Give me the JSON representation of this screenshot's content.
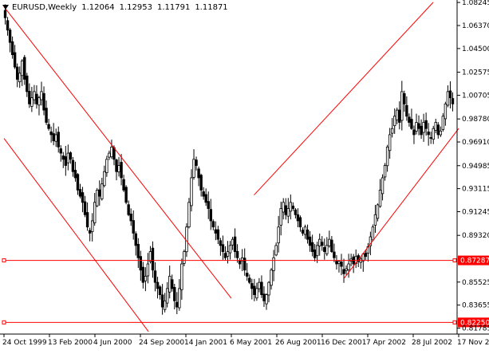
{
  "header": {
    "symbol_timeframe": "EURUSD,Weekly",
    "open": "1.12064",
    "high": "1.12953",
    "low": "1.11791",
    "close": "1.11871"
  },
  "colors": {
    "background": "#ffffff",
    "candle": "#000000",
    "trendline": "#ff0000",
    "hline_label_bg": "#ff0000",
    "hline_label_text": "#ffffff"
  },
  "chart_data": {
    "type": "candlestick",
    "title": "EURUSD,Weekly",
    "y_axis_labels": [
      "1.08245",
      "1.06370",
      "1.04500",
      "1.02575",
      "1.00705",
      "0.98780",
      "0.96910",
      "0.94985",
      "0.93115",
      "0.91245",
      "0.89320",
      "0.87287",
      "0.85525",
      "0.83655",
      "0.82250",
      "0.81785"
    ],
    "x_axis_labels": [
      "24 Oct 1999",
      "13 Feb 2000",
      "4 Jun 2000",
      "24 Sep 2000",
      "14 Jan 2001",
      "6 May 2001",
      "26 Aug 2001",
      "16 Dec 2001",
      "7 Apr 2002",
      "28 Jul 2002",
      "17 Nov 2002"
    ],
    "ylim": [
      0.813,
      1.0825
    ],
    "horizontal_lines": [
      {
        "label": "0.87287",
        "value": 0.87287
      },
      {
        "label": "0.82250",
        "value": 0.8225
      }
    ],
    "trendlines": [
      {
        "from": {
          "x": "24 Oct 1999",
          "y": 1.079
        },
        "to": {
          "x": "6 May 2001",
          "y": 0.842
        }
      },
      {
        "from": {
          "x": "24 Oct 1999",
          "y": 0.972
        },
        "to": {
          "x": "14 Oct 2000",
          "y": 0.815
        }
      },
      {
        "from": {
          "x": "1 Jul 2001",
          "y": 0.926
        },
        "to": {
          "x": "15 Sep 2002",
          "y": 1.0825
        }
      },
      {
        "from": {
          "x": "7 Feb 2002",
          "y": 0.858
        },
        "to": {
          "x": "17 Nov 2002",
          "y": 0.98
        }
      }
    ],
    "ohlc_weekly_close_path": [
      1.07,
      1.06,
      1.05,
      1.04,
      1.03,
      1.02,
      1.025,
      1.035,
      1.02,
      1.01,
      1.0,
      1.005,
      1.01,
      1.0,
      1.005,
      1.01,
      0.995,
      0.985,
      0.98,
      0.975,
      0.97,
      0.975,
      0.965,
      0.96,
      0.955,
      0.95,
      0.96,
      0.955,
      0.945,
      0.94,
      0.93,
      0.925,
      0.92,
      0.91,
      0.9,
      0.895,
      0.905,
      0.92,
      0.93,
      0.925,
      0.935,
      0.945,
      0.955,
      0.96,
      0.965,
      0.955,
      0.945,
      0.95,
      0.94,
      0.93,
      0.92,
      0.91,
      0.905,
      0.895,
      0.885,
      0.875,
      0.865,
      0.855,
      0.86,
      0.87,
      0.88,
      0.865,
      0.855,
      0.85,
      0.845,
      0.835,
      0.84,
      0.85,
      0.86,
      0.85,
      0.84,
      0.835,
      0.85,
      0.87,
      0.88,
      0.9,
      0.92,
      0.94,
      0.955,
      0.95,
      0.94,
      0.93,
      0.925,
      0.92,
      0.915,
      0.905,
      0.9,
      0.895,
      0.89,
      0.885,
      0.88,
      0.875,
      0.88,
      0.885,
      0.89,
      0.88,
      0.875,
      0.87,
      0.875,
      0.865,
      0.86,
      0.855,
      0.85,
      0.845,
      0.85,
      0.855,
      0.845,
      0.84,
      0.845,
      0.855,
      0.865,
      0.875,
      0.885,
      0.9,
      0.915,
      0.92,
      0.91,
      0.915,
      0.92,
      0.915,
      0.91,
      0.905,
      0.9,
      0.895,
      0.9,
      0.89,
      0.885,
      0.88,
      0.875,
      0.885,
      0.89,
      0.885,
      0.88,
      0.885,
      0.89,
      0.88,
      0.875,
      0.87,
      0.872,
      0.868,
      0.862,
      0.866,
      0.87,
      0.874,
      0.87,
      0.876,
      0.872,
      0.874,
      0.878,
      0.876,
      0.884,
      0.892,
      0.9,
      0.91,
      0.918,
      0.93,
      0.94,
      0.95,
      0.965,
      0.975,
      0.98,
      0.99,
      0.995,
      0.985,
      1.01,
      1.0,
      0.99,
      0.985,
      0.98,
      0.975,
      0.985,
      0.98,
      0.975,
      0.985,
      0.98,
      0.975,
      0.972,
      0.98,
      0.985,
      0.975,
      0.978,
      0.99,
      1.0,
      1.01,
      1.005,
      1.0
    ]
  }
}
